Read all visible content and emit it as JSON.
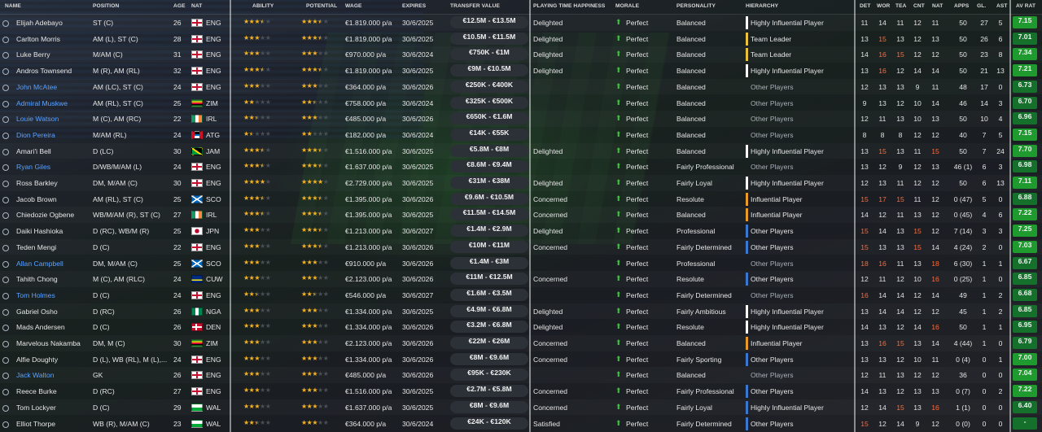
{
  "headers": {
    "name": "NAME",
    "position": "POSITION",
    "age": "AGE",
    "nat": "NAT",
    "ability": "ABILITY",
    "potential": "POTENTIAL",
    "wage": "WAGE",
    "expires": "EXPIRES",
    "transfer_value": "TRANSFER VALUE",
    "happiness": "PLAYING TIME HAPPINESS",
    "morale": "MORALE",
    "personality": "PERSONALITY",
    "hierarchy": "HIERARCHY",
    "det": "DET",
    "wor": "WOR",
    "tea": "TEA",
    "cnt": "CNT",
    "nat2": "NAT",
    "apps": "APPS",
    "gls": "GL.",
    "ast": "AST",
    "avrat": "AV RAT"
  },
  "colors": {
    "star_filled": "#f5b323",
    "star_empty": "#4a4f56",
    "attr_high": "#f07b2a",
    "attr_low": "#ff6a3a",
    "rating_green": "#1f9a2f",
    "rating_dark": "#14702a",
    "hier_white": "#ffffff",
    "hier_yellow": "#e8c23a",
    "hier_orange": "#e89a2a",
    "hier_blue": "#3a78d0"
  },
  "players": [
    {
      "name": "Elijah Adebayo",
      "loan": false,
      "pos": "ST (C)",
      "age": "26",
      "nat": "ENG",
      "flag": "eng",
      "abl": 3.5,
      "pot": 3.5,
      "wage": "€1.819.000 p/a",
      "exp": "30/6/2025",
      "tv": "€12.5M - €13.5M",
      "hap": "Delighted",
      "mor": "Perfect",
      "per": "Balanced",
      "hier": "Highly Influential Player",
      "hbar": "white",
      "det": "11",
      "wor": "14",
      "tea": "11",
      "cnt": "12",
      "nat2": "11",
      "apps": "50",
      "gls": "27",
      "ast": "5",
      "rat": "7.15",
      "ratc": "green"
    },
    {
      "name": "Carlton Morris",
      "loan": false,
      "pos": "AM (L), ST (C)",
      "age": "28",
      "nat": "ENG",
      "flag": "eng",
      "abl": 3,
      "pot": 3.5,
      "wage": "€1.819.000 p/a",
      "exp": "30/6/2025",
      "tv": "€10.5M - €11.5M",
      "hap": "Delighted",
      "mor": "Perfect",
      "per": "Balanced",
      "hier": "Team Leader",
      "hbar": "yellow",
      "det": "13",
      "wor": "15",
      "tea": "13",
      "cnt": "12",
      "nat2": "13",
      "apps": "50",
      "gls": "26",
      "ast": "6",
      "rat": "7.01",
      "ratc": "dark"
    },
    {
      "name": "Luke Berry",
      "loan": false,
      "pos": "M/AM (C)",
      "age": "31",
      "nat": "ENG",
      "flag": "eng",
      "abl": 3,
      "pot": 3,
      "wage": "€970.000 p/a",
      "exp": "30/6/2024",
      "tv": "€750K - €1M",
      "hap": "Delighted",
      "mor": "Perfect",
      "per": "Balanced",
      "hier": "Team Leader",
      "hbar": "yellow",
      "det": "14",
      "wor": "16",
      "tea": "15",
      "cnt": "12",
      "nat2": "12",
      "apps": "50",
      "gls": "23",
      "ast": "8",
      "rat": "7.34",
      "ratc": "green"
    },
    {
      "name": "Andros Townsend",
      "loan": false,
      "pos": "M (R), AM (RL)",
      "age": "32",
      "nat": "ENG",
      "flag": "eng",
      "abl": 3.5,
      "pot": 3.5,
      "wage": "€1.819.000 p/a",
      "exp": "30/6/2025",
      "tv": "€9M - €10.5M",
      "hap": "Delighted",
      "mor": "Perfect",
      "per": "Balanced",
      "hier": "Highly Influential Player",
      "hbar": "white",
      "det": "13",
      "wor": "16",
      "tea": "12",
      "cnt": "14",
      "nat2": "14",
      "apps": "50",
      "gls": "21",
      "ast": "13",
      "rat": "7.21",
      "ratc": "green"
    },
    {
      "name": "John McAtee",
      "loan": true,
      "pos": "AM (LC), ST (C)",
      "age": "24",
      "nat": "ENG",
      "flag": "eng",
      "abl": 3,
      "pot": 3,
      "wage": "€364.000 p/a",
      "exp": "30/6/2026",
      "tv": "€250K - €400K",
      "hap": "",
      "mor": "Perfect",
      "per": "Balanced",
      "hier": "Other Players",
      "hbar": "",
      "det": "12",
      "wor": "13",
      "tea": "13",
      "cnt": "9",
      "nat2": "11",
      "apps": "48",
      "gls": "17",
      "ast": "0",
      "rat": "6.73",
      "ratc": "dark"
    },
    {
      "name": "Admiral Muskwe",
      "loan": true,
      "pos": "AM (RL), ST (C)",
      "age": "25",
      "nat": "ZIM",
      "flag": "zim",
      "abl": 2,
      "pot": 2.5,
      "wage": "€758.000 p/a",
      "exp": "30/6/2024",
      "tv": "€325K - €500K",
      "hap": "",
      "mor": "Perfect",
      "per": "Balanced",
      "hier": "Other Players",
      "hbar": "",
      "det": "9",
      "wor": "13",
      "tea": "12",
      "cnt": "10",
      "nat2": "14",
      "apps": "46",
      "gls": "14",
      "ast": "3",
      "rat": "6.70",
      "ratc": "dark"
    },
    {
      "name": "Louie Watson",
      "loan": true,
      "pos": "M (C), AM (RC)",
      "age": "22",
      "nat": "IRL",
      "flag": "irl",
      "abl": 2.5,
      "pot": 3,
      "wage": "€485.000 p/a",
      "exp": "30/6/2026",
      "tv": "€650K - €1.6M",
      "hap": "",
      "mor": "Perfect",
      "per": "Balanced",
      "hier": "Other Players",
      "hbar": "",
      "det": "12",
      "wor": "11",
      "tea": "13",
      "cnt": "10",
      "nat2": "13",
      "apps": "50",
      "gls": "10",
      "ast": "4",
      "rat": "6.96",
      "ratc": "dark"
    },
    {
      "name": "Dion Pereira",
      "loan": true,
      "pos": "M/AM (RL)",
      "age": "24",
      "nat": "ATG",
      "flag": "atg",
      "abl": 1.5,
      "pot": 2,
      "wage": "€182.000 p/a",
      "exp": "30/6/2024",
      "tv": "€14K - €55K",
      "hap": "",
      "mor": "Perfect",
      "per": "Balanced",
      "hier": "Other Players",
      "hbar": "",
      "det": "8",
      "wor": "8",
      "tea": "8",
      "cnt": "12",
      "nat2": "12",
      "apps": "40",
      "gls": "7",
      "ast": "5",
      "rat": "7.15",
      "ratc": "green"
    },
    {
      "name": "Amari'i Bell",
      "loan": false,
      "pos": "D (LC)",
      "age": "30",
      "nat": "JAM",
      "flag": "jam",
      "abl": 3.5,
      "pot": 3.5,
      "wage": "€1.516.000 p/a",
      "exp": "30/6/2025",
      "tv": "€5.8M - €8M",
      "hap": "Delighted",
      "mor": "Perfect",
      "per": "Balanced",
      "hier": "Highly Influential Player",
      "hbar": "white",
      "det": "13",
      "wor": "15",
      "tea": "13",
      "cnt": "11",
      "nat2": "15",
      "apps": "50",
      "gls": "7",
      "ast": "24",
      "rat": "7.70",
      "ratc": "green"
    },
    {
      "name": "Ryan Giles",
      "loan": true,
      "pos": "D/WB/M/AM (L)",
      "age": "24",
      "nat": "ENG",
      "flag": "eng",
      "abl": 3.5,
      "pot": 3.5,
      "wage": "€1.637.000 p/a",
      "exp": "30/6/2025",
      "tv": "€8.6M - €9.4M",
      "hap": "",
      "mor": "Perfect",
      "per": "Fairly Professional",
      "hier": "Other Players",
      "hbar": "",
      "det": "13",
      "wor": "12",
      "tea": "9",
      "cnt": "12",
      "nat2": "13",
      "apps": "46 (1)",
      "gls": "6",
      "ast": "3",
      "rat": "6.98",
      "ratc": "dark"
    },
    {
      "name": "Ross Barkley",
      "loan": false,
      "pos": "DM, M/AM (C)",
      "age": "30",
      "nat": "ENG",
      "flag": "eng",
      "abl": 4,
      "pot": 4,
      "wage": "€2.729.000 p/a",
      "exp": "30/6/2025",
      "tv": "€31M - €38M",
      "hap": "Delighted",
      "mor": "Perfect",
      "per": "Fairly Loyal",
      "hier": "Highly Influential Player",
      "hbar": "white",
      "det": "12",
      "wor": "13",
      "tea": "11",
      "cnt": "12",
      "nat2": "12",
      "apps": "50",
      "gls": "6",
      "ast": "13",
      "rat": "7.11",
      "ratc": "green"
    },
    {
      "name": "Jacob Brown",
      "loan": false,
      "pos": "AM (RL), ST (C)",
      "age": "25",
      "nat": "SCO",
      "flag": "sco",
      "abl": 3.5,
      "pot": 3.5,
      "wage": "€1.395.000 p/a",
      "exp": "30/6/2026",
      "tv": "€9.6M - €10.5M",
      "hap": "Concerned",
      "mor": "Perfect",
      "per": "Resolute",
      "hier": "Influential Player",
      "hbar": "orange",
      "det": "15",
      "wor": "17",
      "tea": "15",
      "cnt": "11",
      "nat2": "12",
      "apps": "0 (47)",
      "gls": "5",
      "ast": "0",
      "rat": "6.88",
      "ratc": "dark"
    },
    {
      "name": "Chiedozie Ogbene",
      "loan": false,
      "pos": "WB/M/AM (R), ST (C)",
      "age": "27",
      "nat": "IRL",
      "flag": "irl",
      "abl": 3.5,
      "pot": 3.5,
      "wage": "€1.395.000 p/a",
      "exp": "30/6/2025",
      "tv": "€11.5M - €14.5M",
      "hap": "Concerned",
      "mor": "Perfect",
      "per": "Balanced",
      "hier": "Influential Player",
      "hbar": "orange",
      "det": "14",
      "wor": "12",
      "tea": "11",
      "cnt": "13",
      "nat2": "12",
      "apps": "0 (45)",
      "gls": "4",
      "ast": "6",
      "rat": "7.22",
      "ratc": "green"
    },
    {
      "name": "Daiki Hashioka",
      "loan": false,
      "pos": "D (RC), WB/M (R)",
      "age": "25",
      "nat": "JPN",
      "flag": "jpn",
      "abl": 3,
      "pot": 3.5,
      "wage": "€1.213.000 p/a",
      "exp": "30/6/2027",
      "tv": "€1.4M - €2.9M",
      "hap": "Delighted",
      "mor": "Perfect",
      "per": "Professional",
      "hier": "Other Players",
      "hbar": "blue",
      "det": "15",
      "wor": "14",
      "tea": "13",
      "cnt": "15",
      "nat2": "12",
      "apps": "7 (14)",
      "gls": "3",
      "ast": "3",
      "rat": "7.25",
      "ratc": "green"
    },
    {
      "name": "Teden Mengi",
      "loan": false,
      "pos": "D (C)",
      "age": "22",
      "nat": "ENG",
      "flag": "eng",
      "abl": 3,
      "pot": 3.5,
      "wage": "€1.213.000 p/a",
      "exp": "30/6/2026",
      "tv": "€10M - €11M",
      "hap": "Concerned",
      "mor": "Perfect",
      "per": "Fairly Determined",
      "hier": "Other Players",
      "hbar": "blue",
      "det": "15",
      "wor": "13",
      "tea": "13",
      "cnt": "15",
      "nat2": "14",
      "apps": "4 (24)",
      "gls": "2",
      "ast": "0",
      "rat": "7.03",
      "ratc": "green"
    },
    {
      "name": "Allan Campbell",
      "loan": true,
      "pos": "DM, M/AM (C)",
      "age": "25",
      "nat": "SCO",
      "flag": "sco",
      "abl": 3,
      "pot": 3,
      "wage": "€910.000 p/a",
      "exp": "30/6/2026",
      "tv": "€1.4M - €3M",
      "hap": "",
      "mor": "Perfect",
      "per": "Professional",
      "hier": "Other Players",
      "hbar": "",
      "det": "18",
      "wor": "16",
      "tea": "11",
      "cnt": "13",
      "nat2": "18",
      "apps": "6 (30)",
      "gls": "1",
      "ast": "1",
      "rat": "6.67",
      "ratc": "dark"
    },
    {
      "name": "Tahith Chong",
      "loan": false,
      "pos": "M (C), AM (RLC)",
      "age": "24",
      "nat": "CUW",
      "flag": "cuw",
      "abl": 3,
      "pot": 3,
      "wage": "€2.123.000 p/a",
      "exp": "30/6/2026",
      "tv": "€11M - €12.5M",
      "hap": "Concerned",
      "mor": "Perfect",
      "per": "Resolute",
      "hier": "Other Players",
      "hbar": "blue",
      "det": "12",
      "wor": "11",
      "tea": "12",
      "cnt": "10",
      "nat2": "16",
      "apps": "0 (25)",
      "gls": "1",
      "ast": "0",
      "rat": "6.85",
      "ratc": "dark"
    },
    {
      "name": "Tom Holmes",
      "loan": true,
      "pos": "D (C)",
      "age": "24",
      "nat": "ENG",
      "flag": "eng",
      "abl": 2.5,
      "pot": 2.5,
      "wage": "€546.000 p/a",
      "exp": "30/6/2027",
      "tv": "€1.6M - €3.5M",
      "hap": "",
      "mor": "Perfect",
      "per": "Fairly Determined",
      "hier": "Other Players",
      "hbar": "",
      "det": "16",
      "wor": "14",
      "tea": "14",
      "cnt": "12",
      "nat2": "14",
      "apps": "49",
      "gls": "1",
      "ast": "2",
      "rat": "6.68",
      "ratc": "dark"
    },
    {
      "name": "Gabriel Osho",
      "loan": false,
      "pos": "D (RC)",
      "age": "26",
      "nat": "NGA",
      "flag": "nga",
      "abl": 3,
      "pot": 3,
      "wage": "€1.334.000 p/a",
      "exp": "30/6/2025",
      "tv": "€4.9M - €6.8M",
      "hap": "Delighted",
      "mor": "Perfect",
      "per": "Fairly Ambitious",
      "hier": "Highly Influential Player",
      "hbar": "white",
      "det": "13",
      "wor": "14",
      "tea": "14",
      "cnt": "12",
      "nat2": "12",
      "apps": "45",
      "gls": "1",
      "ast": "2",
      "rat": "6.85",
      "ratc": "dark"
    },
    {
      "name": "Mads Andersen",
      "loan": false,
      "pos": "D (C)",
      "age": "26",
      "nat": "DEN",
      "flag": "den",
      "abl": 3,
      "pot": 3,
      "wage": "€1.334.000 p/a",
      "exp": "30/6/2026",
      "tv": "€3.2M - €6.8M",
      "hap": "Delighted",
      "mor": "Perfect",
      "per": "Resolute",
      "hier": "Highly Influential Player",
      "hbar": "white",
      "det": "14",
      "wor": "13",
      "tea": "12",
      "cnt": "14",
      "nat2": "16",
      "apps": "50",
      "gls": "1",
      "ast": "1",
      "rat": "6.95",
      "ratc": "dark"
    },
    {
      "name": "Marvelous Nakamba",
      "loan": false,
      "pos": "DM, M (C)",
      "age": "30",
      "nat": "ZIM",
      "flag": "zim",
      "abl": 3,
      "pot": 3,
      "wage": "€2.123.000 p/a",
      "exp": "30/6/2026",
      "tv": "€22M - €26M",
      "hap": "Concerned",
      "mor": "Perfect",
      "per": "Balanced",
      "hier": "Influential Player",
      "hbar": "orange",
      "det": "13",
      "wor": "16",
      "tea": "15",
      "cnt": "13",
      "nat2": "14",
      "apps": "4 (44)",
      "gls": "1",
      "ast": "0",
      "rat": "6.79",
      "ratc": "dark"
    },
    {
      "name": "Alfie Doughty",
      "loan": false,
      "pos": "D (L), WB (RL), M (L),...",
      "age": "24",
      "nat": "ENG",
      "flag": "eng",
      "abl": 3,
      "pot": 3,
      "wage": "€1.334.000 p/a",
      "exp": "30/6/2026",
      "tv": "€8M - €9.6M",
      "hap": "Concerned",
      "mor": "Perfect",
      "per": "Fairly Sporting",
      "hier": "Other Players",
      "hbar": "blue",
      "det": "13",
      "wor": "13",
      "tea": "12",
      "cnt": "10",
      "nat2": "11",
      "apps": "0 (4)",
      "gls": "0",
      "ast": "1",
      "rat": "7.00",
      "ratc": "green"
    },
    {
      "name": "Jack Walton",
      "loan": true,
      "pos": "GK",
      "age": "26",
      "nat": "ENG",
      "flag": "eng",
      "abl": 3,
      "pot": 3,
      "wage": "€485.000 p/a",
      "exp": "30/6/2026",
      "tv": "€95K - €230K",
      "hap": "",
      "mor": "Perfect",
      "per": "Balanced",
      "hier": "Other Players",
      "hbar": "",
      "det": "12",
      "wor": "11",
      "tea": "13",
      "cnt": "12",
      "nat2": "12",
      "apps": "36",
      "gls": "0",
      "ast": "0",
      "rat": "7.04",
      "ratc": "green"
    },
    {
      "name": "Reece Burke",
      "loan": false,
      "pos": "D (RC)",
      "age": "27",
      "nat": "ENG",
      "flag": "eng",
      "abl": 3,
      "pot": 3,
      "wage": "€1.516.000 p/a",
      "exp": "30/6/2025",
      "tv": "€2.7M - €5.8M",
      "hap": "Concerned",
      "mor": "Perfect",
      "per": "Fairly Professional",
      "hier": "Other Players",
      "hbar": "blue",
      "det": "14",
      "wor": "13",
      "tea": "12",
      "cnt": "13",
      "nat2": "13",
      "apps": "0 (7)",
      "gls": "0",
      "ast": "2",
      "rat": "7.22",
      "ratc": "green"
    },
    {
      "name": "Tom Lockyer",
      "loan": false,
      "pos": "D (C)",
      "age": "29",
      "nat": "WAL",
      "flag": "wal",
      "abl": 3,
      "pot": 3,
      "wage": "€1.637.000 p/a",
      "exp": "30/6/2025",
      "tv": "€8M - €9.6M",
      "hap": "Concerned",
      "mor": "Perfect",
      "per": "Fairly Loyal",
      "hier": "Highly Influential Player",
      "hbar": "blue",
      "det": "12",
      "wor": "14",
      "tea": "15",
      "cnt": "13",
      "nat2": "16",
      "apps": "1 (1)",
      "gls": "0",
      "ast": "0",
      "rat": "6.40",
      "ratc": "dark"
    },
    {
      "name": "Elliot Thorpe",
      "loan": false,
      "pos": "WB (R), M/AM (C)",
      "age": "23",
      "nat": "WAL",
      "flag": "wal",
      "abl": 2.5,
      "pot": 3,
      "wage": "€364.000 p/a",
      "exp": "30/6/2024",
      "tv": "€24K - €120K",
      "hap": "Satisfied",
      "mor": "Perfect",
      "per": "Fairly Determined",
      "hier": "Other Players",
      "hbar": "blue",
      "det": "15",
      "wor": "12",
      "tea": "14",
      "cnt": "9",
      "nat2": "12",
      "apps": "0 (0)",
      "gls": "0",
      "ast": "0",
      "rat": "-",
      "ratc": "dark"
    }
  ]
}
